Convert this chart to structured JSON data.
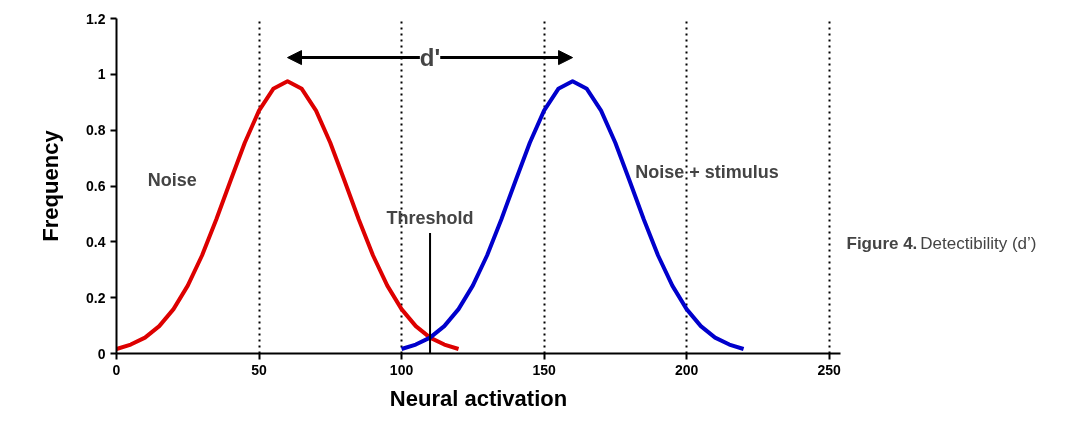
{
  "chart_data": {
    "type": "line",
    "xlabel": "Neural activation",
    "ylabel": "Frequency",
    "xlim": [
      0,
      254
    ],
    "ylim": [
      0,
      1.2
    ],
    "xticks": [
      0,
      50,
      100,
      150,
      200,
      250
    ],
    "yticks": [
      0,
      0.2,
      0.4,
      0.6,
      0.8,
      1,
      1.2
    ],
    "grid": "x",
    "line_style": "solid",
    "marker": "none",
    "series": [
      {
        "name": "Noise",
        "color": "#dd0000",
        "x": [
          0,
          5,
          10,
          15,
          20,
          25,
          30,
          35,
          40,
          45,
          50,
          55,
          60,
          65,
          70,
          75,
          80,
          85,
          90,
          95,
          100,
          105,
          110,
          115,
          120
        ],
        "values": [
          0.016,
          0.032,
          0.057,
          0.098,
          0.159,
          0.243,
          0.351,
          0.48,
          0.619,
          0.755,
          0.87,
          0.948,
          0.975,
          0.948,
          0.87,
          0.755,
          0.619,
          0.48,
          0.351,
          0.243,
          0.159,
          0.098,
          0.057,
          0.032,
          0.016
        ]
      },
      {
        "name": "Noise + stimulus",
        "color": "#0000cc",
        "x": [
          100,
          105,
          110,
          115,
          120,
          125,
          130,
          135,
          140,
          145,
          150,
          155,
          160,
          165,
          170,
          175,
          180,
          185,
          190,
          195,
          200,
          205,
          210,
          215,
          220
        ],
        "values": [
          0.016,
          0.032,
          0.057,
          0.098,
          0.159,
          0.243,
          0.351,
          0.48,
          0.619,
          0.755,
          0.87,
          0.948,
          0.975,
          0.948,
          0.87,
          0.755,
          0.619,
          0.48,
          0.351,
          0.243,
          0.159,
          0.098,
          0.057,
          0.032,
          0.016
        ]
      }
    ],
    "ref_lines": [
      {
        "axis": "x",
        "value": 110,
        "label": "Threshold",
        "color": "#000000",
        "line_style": "solid"
      }
    ],
    "annotations": [
      {
        "text": "d'",
        "x": 110,
        "y": 1.06
      },
      "Figure 4. Detectibility (d’)"
    ]
  }
}
